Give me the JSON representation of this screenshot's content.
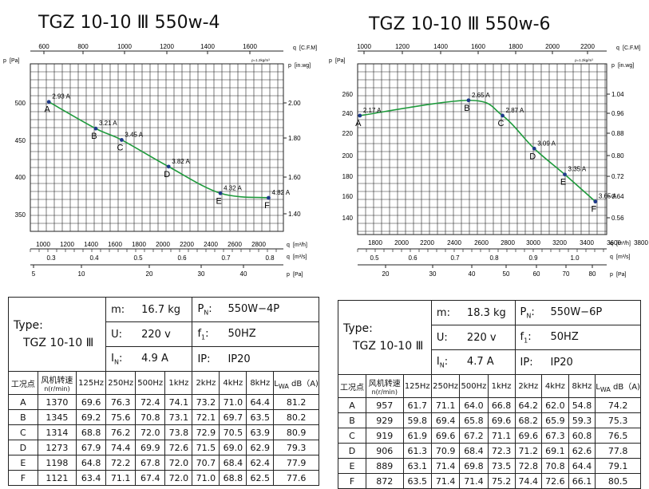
{
  "charts": [
    {
      "title": "TGZ 10-10 Ⅲ 550w-4",
      "units": {
        "top": "q",
        "top_unit": "[C.F.M]",
        "pf": "p",
        "pf_unit": "[Pa]",
        "inwg": "p",
        "inwg_unit": "[in.wg]",
        "m3h": "q",
        "m3h_unit": "[m³/h]",
        "m3s": "q",
        "m3s_unit": "[m³/s]",
        "pd": "p",
        "pd_unit": "[Pa]",
        "density": "ρ=1.2kg/m³"
      },
      "ticks": {
        "cfm": [
          "600",
          "800",
          "1000",
          "1200",
          "1400",
          "1600"
        ],
        "pa": [
          "500",
          "450",
          "400",
          "350"
        ],
        "inwg": [
          "2.00",
          "1.80",
          "1.60",
          "1.40"
        ],
        "m3h": [
          "1000",
          "1200",
          "1400",
          "1600",
          "1800",
          "2000",
          "2200",
          "2400",
          "2600",
          "2800"
        ],
        "m3s": [
          "0.3",
          "0.4",
          "0.5",
          "0.6",
          "0.7",
          "0.8"
        ],
        "pd": [
          "5",
          "10",
          "20",
          "30",
          "40"
        ]
      }
    },
    {
      "title": "TGZ 10-10 Ⅲ 550w-6",
      "units": {
        "top": "q",
        "top_unit": "[C.F.M]",
        "pf": "p",
        "pf_unit": "[Pa]",
        "inwg": "p",
        "inwg_unit": "[in.wg]",
        "m3h": "q",
        "m3h_unit": "[m³/h]",
        "m3s": "q",
        "m3s_unit": "[m³/s]",
        "pd": "p",
        "pd_unit": "[Pa]",
        "density": "ρ=1.2kg/m³"
      },
      "ticks": {
        "cfm": [
          "1000",
          "1200",
          "1400",
          "1600",
          "1800",
          "2000",
          "2200"
        ],
        "pa": [
          "260",
          "240",
          "220",
          "200",
          "180",
          "160",
          "140"
        ],
        "inwg": [
          "1.04",
          "0.96",
          "0.88",
          "0.80",
          "0.72",
          "0.64",
          "0.56"
        ],
        "m3h": [
          "1800",
          "2000",
          "2200",
          "2400",
          "2600",
          "2800",
          "3000",
          "3200",
          "3400",
          "3600",
          "3800"
        ],
        "m3s": [
          "0.5",
          "0.6",
          "0.7",
          "0.8",
          "0.9",
          "1.0"
        ],
        "pd": [
          "20",
          "30",
          "40",
          "50",
          "60",
          "70",
          "80"
        ]
      }
    }
  ],
  "chart_data": [
    {
      "type": "line",
      "title": "TGZ 10-10 Ⅲ 550w-4",
      "xlabel": "q [m³/h]",
      "ylabel": "p [Pa]",
      "xlim": [
        900,
        2950
      ],
      "ylim": [
        320,
        540
      ],
      "grid": true,
      "series": [
        {
          "points": [
            {
              "label": "A",
              "x": 1050,
              "y": 490,
              "current": "2.93 A"
            },
            {
              "label": "B",
              "x": 1430,
              "y": 455,
              "current": "3.21 A"
            },
            {
              "label": "C",
              "x": 1640,
              "y": 440,
              "current": "3.45 A"
            },
            {
              "label": "D",
              "x": 2020,
              "y": 405,
              "current": "3.82 A"
            },
            {
              "label": "E",
              "x": 2440,
              "y": 370,
              "current": "4.32 A"
            },
            {
              "label": "F",
              "x": 2830,
              "y": 364,
              "current": "4.82 A"
            }
          ]
        }
      ]
    },
    {
      "type": "line",
      "title": "TGZ 10-10 Ⅲ 550w-6",
      "xlabel": "q [m³/h]",
      "ylabel": "p [Pa]",
      "xlim": [
        1700,
        3900
      ],
      "ylim": [
        125,
        270
      ],
      "grid": true,
      "series": [
        {
          "points": [
            {
              "label": "A",
              "x": 1720,
              "y": 226,
              "current": "2.17 A"
            },
            {
              "label": "B",
              "x": 2680,
              "y": 239,
              "current": "2.65 A"
            },
            {
              "label": "C",
              "x": 2980,
              "y": 226,
              "current": "2.87 A"
            },
            {
              "label": "D",
              "x": 3260,
              "y": 198,
              "current": "3.09 A"
            },
            {
              "label": "E",
              "x": 3530,
              "y": 176,
              "current": "3.35 A"
            },
            {
              "label": "F",
              "x": 3800,
              "y": 153,
              "current": "3.65 A"
            }
          ]
        }
      ]
    }
  ],
  "tables": [
    {
      "type_label": "Type:",
      "type_value": "TGZ 10-10 Ⅲ",
      "m_label": "m:",
      "m_value": "16.7 kg",
      "pn_label": "P",
      "pn_sub": "N",
      "pn_value": "550W−4P",
      "u_label": "U:",
      "u_value": "220 v",
      "f_label": "f",
      "f_sub": "1",
      "f_value": "50HZ",
      "in_label": "I",
      "in_sub": "N",
      "in_value": "4.9 A",
      "ip_label": "IP:",
      "ip_value": "IP20",
      "headers": [
        "工况点",
        "风机转速",
        "n(r/min)",
        "125Hz",
        "250Hz",
        "500Hz",
        "1kHz",
        "2kHz",
        "4kHz",
        "8kHz",
        "L",
        "WA",
        "dB（A)"
      ],
      "rows": [
        [
          "A",
          "1370",
          "69.6",
          "76.3",
          "72.4",
          "74.1",
          "73.2",
          "71.0",
          "64.4",
          "81.2"
        ],
        [
          "B",
          "1345",
          "69.2",
          "75.6",
          "70.8",
          "73.1",
          "72.1",
          "69.7",
          "63.5",
          "80.2"
        ],
        [
          "C",
          "1314",
          "68.8",
          "76.2",
          "72.0",
          "73.8",
          "72.9",
          "70.5",
          "63.9",
          "80.9"
        ],
        [
          "D",
          "1273",
          "67.9",
          "74.4",
          "69.9",
          "72.6",
          "71.5",
          "69.0",
          "62.9",
          "79.3"
        ],
        [
          "E",
          "1198",
          "64.8",
          "72.2",
          "67.8",
          "72.0",
          "70.7",
          "68.4",
          "62.4",
          "77.9"
        ],
        [
          "F",
          "1121",
          "63.4",
          "71.1",
          "67.4",
          "72.0",
          "71.0",
          "68.8",
          "62.5",
          "77.6"
        ]
      ]
    },
    {
      "type_label": "Type:",
      "type_value": "TGZ 10-10 Ⅲ",
      "m_label": "m:",
      "m_value": "18.3 kg",
      "pn_label": "P",
      "pn_sub": "N",
      "pn_value": "550W−6P",
      "u_label": "U:",
      "u_value": "220 v",
      "f_label": "f",
      "f_sub": "1",
      "f_value": "50HZ",
      "in_label": "I",
      "in_sub": "N",
      "in_value": "4.7 A",
      "ip_label": "IP:",
      "ip_value": "IP20",
      "headers": [
        "工况点",
        "风机转速",
        "n(r/min)",
        "125Hz",
        "250Hz",
        "500Hz",
        "1kHz",
        "2kHz",
        "4kHz",
        "8kHz",
        "L",
        "WA",
        "dB（A)"
      ],
      "rows": [
        [
          "A",
          "957",
          "61.7",
          "71.1",
          "64.0",
          "66.8",
          "64.2",
          "62.0",
          "54.8",
          "74.2"
        ],
        [
          "B",
          "929",
          "59.8",
          "69.4",
          "65.8",
          "69.6",
          "68.2",
          "65.9",
          "59.3",
          "75.3"
        ],
        [
          "C",
          "919",
          "61.9",
          "69.6",
          "67.2",
          "71.1",
          "69.6",
          "67.3",
          "60.8",
          "76.5"
        ],
        [
          "D",
          "906",
          "61.3",
          "70.9",
          "68.4",
          "72.3",
          "71.2",
          "69.1",
          "62.6",
          "77.8"
        ],
        [
          "E",
          "889",
          "63.1",
          "71.4",
          "69.8",
          "73.5",
          "72.8",
          "70.8",
          "64.4",
          "79.1"
        ],
        [
          "F",
          "872",
          "63.5",
          "71.4",
          "71.4",
          "75.2",
          "74.4",
          "72.6",
          "66.1",
          "80.5"
        ]
      ]
    }
  ],
  "style": {
    "curve_color": "#1e9a3c",
    "point_color": "#1f3a8a",
    "grid_color": "#222222"
  }
}
